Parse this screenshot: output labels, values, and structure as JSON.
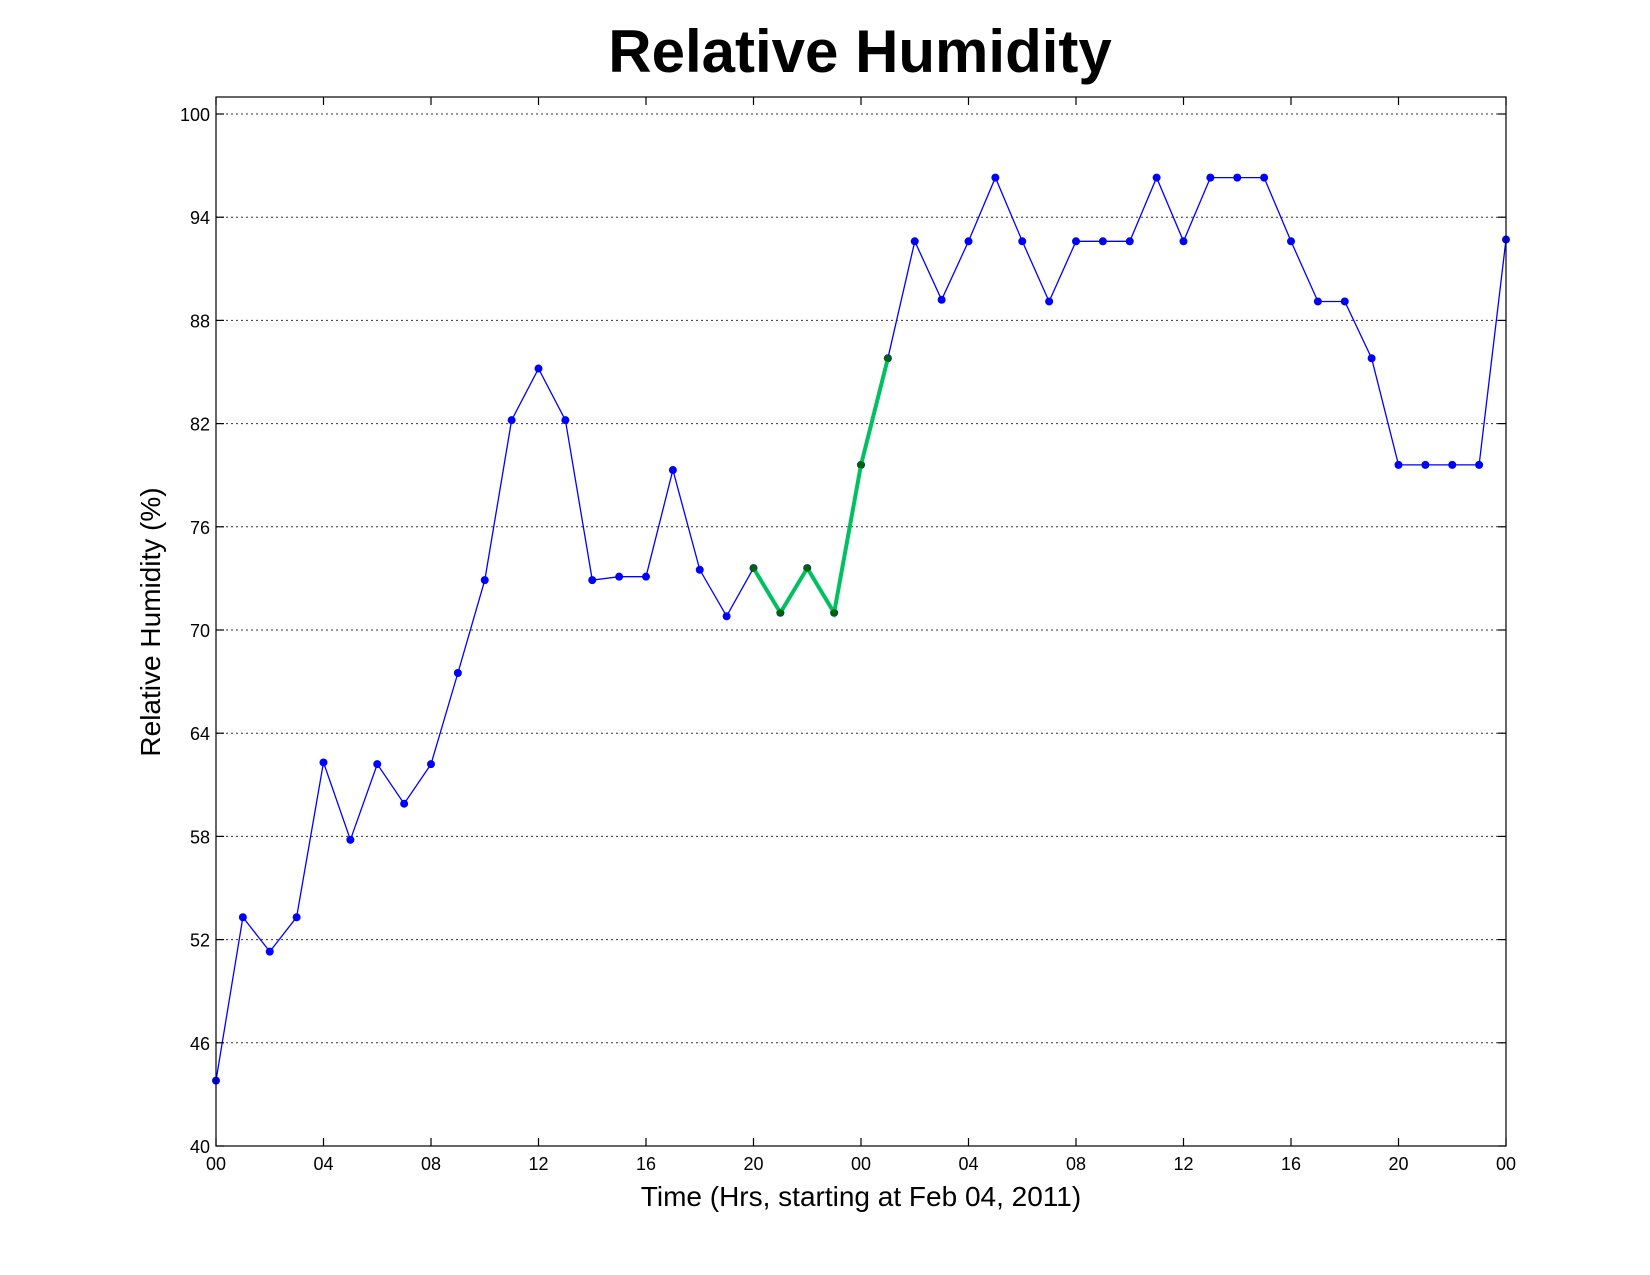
{
  "chart_data": {
    "type": "line",
    "title": "Relative Humidity",
    "xlabel": "Time (Hrs, starting at Feb 04, 2011)",
    "ylabel": "Relative Humidity (%)",
    "xlim": [
      0,
      48
    ],
    "ylim": [
      40,
      100
    ],
    "grid": "horizontal dotted",
    "x_tick_labels": [
      "00",
      "04",
      "08",
      "12",
      "16",
      "20",
      "00",
      "04",
      "08",
      "12",
      "16",
      "20",
      "00"
    ],
    "y_tick_labels": [
      "40",
      "46",
      "52",
      "58",
      "64",
      "70",
      "76",
      "82",
      "88",
      "94",
      "100"
    ],
    "x": [
      0,
      1,
      2,
      3,
      4,
      5,
      6,
      7,
      8,
      9,
      10,
      11,
      12,
      13,
      14,
      15,
      16,
      17,
      18,
      19,
      20,
      21,
      22,
      23,
      24,
      25,
      26,
      27,
      28,
      29,
      30,
      31,
      32,
      33,
      34,
      35,
      36,
      37,
      38,
      39,
      40,
      41,
      42,
      43,
      44,
      45,
      46,
      47,
      48
    ],
    "series": [
      {
        "color": "#0000ff",
        "values": [
          43.8,
          53.3,
          51.3,
          53.3,
          62.3,
          57.8,
          62.2,
          59.9,
          62.2,
          67.5,
          72.9,
          82.2,
          85.2,
          82.2,
          72.9,
          73.1,
          73.1,
          79.3,
          73.5,
          70.8,
          73.6,
          71.0,
          73.6,
          71.0,
          79.6,
          85.8,
          92.6,
          89.2,
          92.6,
          96.3,
          92.6,
          89.1,
          92.6,
          92.6,
          92.6,
          96.3,
          92.6,
          96.3,
          96.3,
          96.3,
          92.6,
          89.1,
          89.1,
          85.8,
          79.6,
          79.6,
          79.6,
          79.6,
          92.7
        ]
      },
      {
        "color": "#00c060",
        "marker_color": "#006400",
        "x": [
          20,
          21,
          22,
          23,
          24,
          25
        ],
        "values": [
          73.6,
          71.0,
          73.6,
          71.0,
          79.6,
          85.8
        ]
      }
    ]
  }
}
